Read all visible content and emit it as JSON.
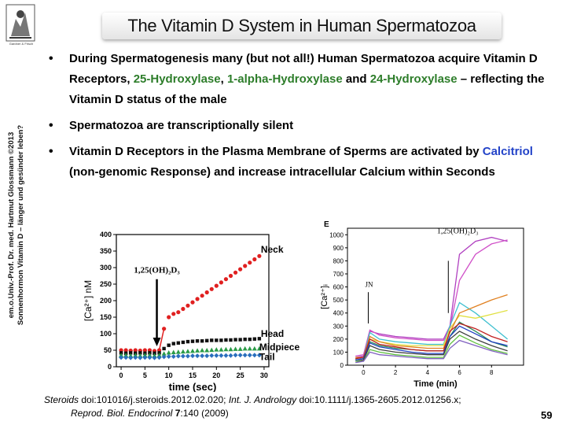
{
  "title": "The Vitamin D System in Human Spermatozoa",
  "logo": {
    "icon": "engraving-logo",
    "caption": "Gardner & Frisch"
  },
  "sidebar": {
    "line1": "em.o.Univ.-Prof. Dr. med. Hartmut Glossmann ©2013",
    "line2": "Sonnenhormon Vitamin D – länger und gesünder leben?"
  },
  "bullets": [
    {
      "segments": [
        {
          "text": "During Spermatogenesis many (but not all!) Human Spermatozoa acquire Vitamin D Receptors, ",
          "color": "black"
        },
        {
          "text": "25-Hydroxylase",
          "color": "green"
        },
        {
          "text": ", ",
          "color": "black"
        },
        {
          "text": "1-alpha-Hydroxylase",
          "color": "green"
        },
        {
          "text": " and ",
          "color": "black"
        },
        {
          "text": "24-Hydroxylase",
          "color": "green"
        },
        {
          "text": " – reflecting the Vitamin D status of the male",
          "color": "black"
        }
      ]
    },
    {
      "segments": [
        {
          "text": "Spermatozoa are transcriptionally silent",
          "color": "black"
        }
      ]
    },
    {
      "segments": [
        {
          "text": "Vitamin D Receptors in the Plasma Membrane of Sperms are activated by ",
          "color": "black"
        },
        {
          "text": "Calcitriol",
          "color": "blue"
        },
        {
          "text": " (non-genomic Response) and increase intracellular Calcium within Seconds",
          "color": "black"
        }
      ]
    }
  ],
  "colors": {
    "green": "#2d7d2a",
    "blue": "#2343c8"
  },
  "figure_left": {
    "ylabel": "[Ca²⁺] nM",
    "xlabel": "time (sec)",
    "annotation": "1,25(OH)₂D₃",
    "y_ticks": [
      "0",
      "50",
      "100",
      "150",
      "200",
      "250",
      "300",
      "350",
      "400"
    ],
    "x_ticks": [
      "0",
      "5",
      "10",
      "15",
      "20",
      "25",
      "30"
    ],
    "labels": {
      "neck": "Neck",
      "head": "Head",
      "midpiece": "Midpiece",
      "tail": "Tail"
    }
  },
  "figure_right": {
    "panel": "E",
    "ylabel": "[Ca²⁺]ᵢ",
    "xlabel": "Time (min)",
    "annotation": "1,25(OH)₂D₃",
    "marker": "JN",
    "y_ticks": [
      "0",
      "100",
      "200",
      "300",
      "400",
      "500",
      "600",
      "700",
      "800",
      "900",
      "1000"
    ],
    "x_ticks": [
      "0",
      "2",
      "4",
      "6",
      "8"
    ]
  },
  "chart_data": [
    {
      "type": "scatter",
      "xlabel": "time (sec)",
      "ylabel": "[Ca²⁺] nM",
      "xlim": [
        -1,
        31
      ],
      "ylim": [
        0,
        400
      ],
      "annotation": "1,25(OH)₂D₃",
      "series": [
        {
          "name": "Neck",
          "color": "#e02020",
          "x": [
            0,
            1,
            2,
            3,
            4,
            5,
            6,
            7,
            8,
            9,
            10,
            11,
            12,
            13,
            14,
            15,
            16,
            17,
            18,
            19,
            20,
            21,
            22,
            23,
            24,
            25,
            26,
            27,
            28,
            29
          ],
          "y": [
            50,
            50,
            49,
            50,
            49,
            50,
            50,
            48,
            50,
            115,
            150,
            160,
            165,
            175,
            185,
            195,
            205,
            215,
            225,
            235,
            245,
            255,
            265,
            275,
            285,
            295,
            305,
            315,
            325,
            335
          ]
        },
        {
          "name": "Head",
          "color": "#111111",
          "x": [
            0,
            1,
            2,
            3,
            4,
            5,
            6,
            7,
            8,
            9,
            10,
            11,
            12,
            13,
            14,
            15,
            16,
            17,
            18,
            19,
            20,
            21,
            22,
            23,
            24,
            25,
            26,
            27,
            28,
            29
          ],
          "y": [
            42,
            41,
            42,
            41,
            42,
            41,
            42,
            41,
            42,
            55,
            65,
            70,
            72,
            74,
            76,
            77,
            78,
            78,
            79,
            80,
            80,
            80,
            81,
            81,
            82,
            82,
            83,
            83,
            84,
            85
          ]
        },
        {
          "name": "Midpiece",
          "color": "#2a9b46",
          "x": [
            0,
            1,
            2,
            3,
            4,
            5,
            6,
            7,
            8,
            9,
            10,
            11,
            12,
            13,
            14,
            15,
            16,
            17,
            18,
            19,
            20,
            21,
            22,
            23,
            24,
            25,
            26,
            27,
            28,
            29
          ],
          "y": [
            35,
            35,
            34,
            35,
            34,
            35,
            35,
            34,
            35,
            40,
            43,
            44,
            45,
            46,
            47,
            48,
            49,
            50,
            50,
            51,
            52,
            52,
            53,
            53,
            54,
            54,
            55,
            55,
            55,
            55
          ]
        },
        {
          "name": "Tail",
          "color": "#2a6fbd",
          "x": [
            0,
            1,
            2,
            3,
            4,
            5,
            6,
            7,
            8,
            9,
            10,
            11,
            12,
            13,
            14,
            15,
            16,
            17,
            18,
            19,
            20,
            21,
            22,
            23,
            24,
            25,
            26,
            27,
            28,
            29
          ],
          "y": [
            28,
            28,
            27,
            28,
            27,
            28,
            28,
            27,
            28,
            30,
            31,
            31,
            32,
            32,
            32,
            33,
            33,
            33,
            33,
            34,
            34,
            34,
            34,
            34,
            35,
            35,
            35,
            35,
            35,
            35
          ]
        }
      ]
    },
    {
      "type": "line",
      "xlabel": "Time (min)",
      "ylabel": "[Ca²⁺]ᵢ",
      "xlim": [
        -1,
        10
      ],
      "ylim": [
        0,
        1050
      ],
      "annotations": [
        "JN",
        "1,25(OH)₂D₃"
      ],
      "series": [
        {
          "color": "#b040c0",
          "x": [
            -0.5,
            0,
            0.4,
            1,
            2,
            3,
            4,
            5,
            5.4,
            6,
            7,
            8,
            9
          ],
          "y": [
            60,
            70,
            260,
            240,
            220,
            210,
            200,
            200,
            300,
            850,
            950,
            980,
            950
          ]
        },
        {
          "color": "#d050c8",
          "x": [
            -0.5,
            0,
            0.4,
            1,
            2,
            3,
            4,
            5,
            5.4,
            6,
            7,
            8,
            9
          ],
          "y": [
            70,
            80,
            270,
            230,
            210,
            200,
            190,
            190,
            280,
            650,
            850,
            930,
            960
          ]
        },
        {
          "color": "#40c0d0",
          "x": [
            -0.5,
            0,
            0.4,
            1,
            2,
            3,
            4,
            5,
            5.4,
            6,
            7,
            8,
            9
          ],
          "y": [
            50,
            60,
            250,
            200,
            180,
            170,
            160,
            160,
            300,
            480,
            400,
            300,
            200
          ]
        },
        {
          "color": "#e0e040",
          "x": [
            -0.5,
            0,
            0.4,
            1,
            2,
            3,
            4,
            5,
            5.4,
            6,
            7,
            8,
            9
          ],
          "y": [
            60,
            60,
            200,
            180,
            160,
            150,
            150,
            150,
            280,
            380,
            360,
            390,
            420
          ]
        },
        {
          "color": "#e08020",
          "x": [
            -0.5,
            0,
            0.4,
            1,
            2,
            3,
            4,
            5,
            5.4,
            6,
            7,
            8,
            9
          ],
          "y": [
            60,
            60,
            220,
            180,
            150,
            140,
            130,
            130,
            250,
            400,
            450,
            500,
            540
          ]
        },
        {
          "color": "#2a8a5a",
          "x": [
            -0.5,
            0,
            0.4,
            1,
            2,
            3,
            4,
            5,
            5.4,
            6,
            7,
            8,
            9
          ],
          "y": [
            40,
            50,
            180,
            150,
            130,
            120,
            110,
            110,
            220,
            330,
            260,
            180,
            140
          ]
        },
        {
          "color": "#c02020",
          "x": [
            -0.5,
            0,
            0.4,
            1,
            2,
            3,
            4,
            5,
            5.4,
            6,
            7,
            8,
            9
          ],
          "y": [
            50,
            60,
            200,
            160,
            140,
            120,
            110,
            110,
            260,
            320,
            280,
            220,
            180
          ]
        },
        {
          "color": "#2040c0",
          "x": [
            -0.5,
            0,
            0.4,
            1,
            2,
            3,
            4,
            5,
            5.4,
            6,
            7,
            8,
            9
          ],
          "y": [
            40,
            50,
            170,
            140,
            120,
            100,
            90,
            90,
            220,
            300,
            240,
            180,
            150
          ]
        },
        {
          "color": "#404040",
          "x": [
            -0.5,
            0,
            0.4,
            1,
            2,
            3,
            4,
            5,
            5.4,
            6,
            7,
            8,
            9
          ],
          "y": [
            30,
            40,
            150,
            120,
            100,
            90,
            80,
            80,
            200,
            260,
            200,
            150,
            110
          ]
        },
        {
          "color": "#60c040",
          "x": [
            -0.5,
            0,
            0.4,
            1,
            2,
            3,
            4,
            5,
            5.4,
            6,
            7,
            8,
            9
          ],
          "y": [
            30,
            30,
            120,
            100,
            80,
            70,
            60,
            60,
            160,
            230,
            170,
            120,
            90
          ]
        },
        {
          "color": "#8060c0",
          "x": [
            -0.5,
            0,
            0.4,
            1,
            2,
            3,
            4,
            5,
            5.4,
            6,
            7,
            8,
            9
          ],
          "y": [
            20,
            30,
            100,
            80,
            70,
            60,
            50,
            50,
            130,
            190,
            150,
            110,
            80
          ]
        }
      ]
    }
  ],
  "reference": {
    "j1": "Steroids",
    "t1": " doi:101016/j.steroids.2012.02.020; ",
    "j2": "Int. J. Andrology",
    "t2": "  doi:10.1111/j.1365-2605.2012.01256.x;",
    "j3": "Reprod. Biol. Endocrinol",
    "t3": "  7",
    "t4": ":140 (2009)"
  },
  "page_number": "59"
}
